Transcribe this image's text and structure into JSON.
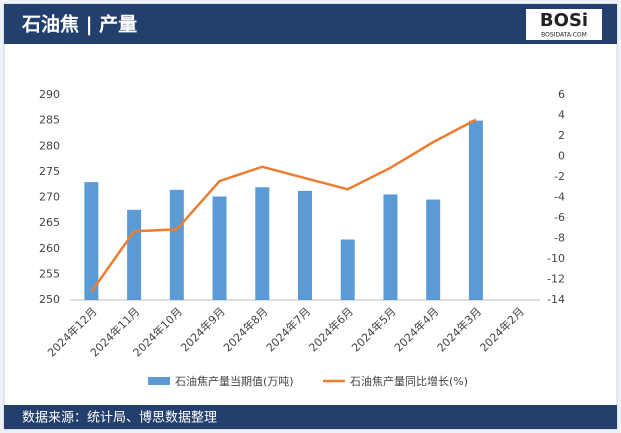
{
  "chart_data": {
    "type": "bar_line",
    "title": "石油焦 | 产量",
    "categories": [
      "2024年12月",
      "2024年11月",
      "2024年10月",
      "2024年9月",
      "2024年8月",
      "2024年7月",
      "2024年6月",
      "2024年5月",
      "2024年4月",
      "2024年3月",
      "2024年2月"
    ],
    "series": [
      {
        "name": "石油焦产量当期值(万吨)",
        "color": "#5b9bd5",
        "type": "bar",
        "values": [
          273,
          267.6,
          271.5,
          270.2,
          272,
          271.3,
          261.8,
          270.6,
          269.6,
          285,
          null
        ]
      },
      {
        "name": "石油焦产量同比增长(%)",
        "color": "#ed7d31",
        "type": "line",
        "axis": "y2",
        "values": [
          -13.2,
          -7.3,
          -7.1,
          -2.4,
          -1,
          -2.1,
          -3.2,
          -1.1,
          1.4,
          3.6,
          null
        ]
      }
    ],
    "ylim": [
      250,
      290
    ],
    "yticks": [
      250,
      255,
      260,
      265,
      270,
      275,
      280,
      285,
      290
    ],
    "y2lim": [
      -14,
      6
    ],
    "y2ticks": [
      -14,
      -12,
      -10,
      -8,
      -6,
      -4,
      -2,
      0,
      2,
      4,
      6
    ],
    "grid": false,
    "legend": "bottom"
  },
  "header": {
    "logo": "BOSi",
    "logo_sub": "BOSIDATA.COM"
  },
  "footer": {
    "source": "数据来源：统计局、博思数据整理"
  }
}
